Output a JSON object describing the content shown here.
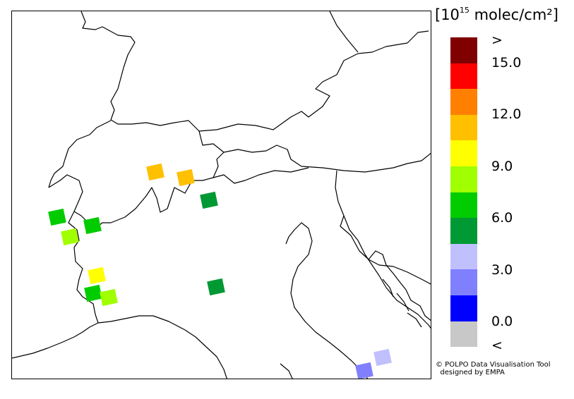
{
  "legend": {
    "unit_prefix": "[10",
    "unit_exponent": "15",
    "unit_suffix": " molec/cm²]",
    "tick_labels": [
      ">",
      "15.0",
      "12.0",
      "9.0",
      "6.0",
      "3.0",
      "0.0",
      "<"
    ],
    "color_scale": [
      "#800000",
      "#ff0000",
      "#ff8000",
      "#ffc000",
      "#ffff00",
      "#a0ff00",
      "#00cc00",
      "#009933",
      "#c0c0ff",
      "#8080ff",
      "#0000ff",
      "#c8c8c8"
    ]
  },
  "credit": {
    "line1": "© POLPO Data Visualisation Tool",
    "line2": "designed by EMPA"
  },
  "map_cells": [
    {
      "id": "cell-1",
      "color": "#ffc000",
      "value": 10.8
    },
    {
      "id": "cell-2",
      "color": "#ffc000",
      "value": 10.8
    },
    {
      "id": "cell-3",
      "color": "#009933",
      "value": 5.4
    },
    {
      "id": "cell-4",
      "color": "#00cc00",
      "value": 6.6
    },
    {
      "id": "cell-5",
      "color": "#00cc00",
      "value": 6.6
    },
    {
      "id": "cell-6",
      "color": "#a0ff00",
      "value": 8.4
    },
    {
      "id": "cell-7",
      "color": "#ffff00",
      "value": 9.6
    },
    {
      "id": "cell-8",
      "color": "#00cc00",
      "value": 6.6
    },
    {
      "id": "cell-9",
      "color": "#a0ff00",
      "value": 8.4
    },
    {
      "id": "cell-10",
      "color": "#009933",
      "value": 5.4
    },
    {
      "id": "cell-11",
      "color": "#c0c0ff",
      "value": 3.6
    },
    {
      "id": "cell-12",
      "color": "#8080ff",
      "value": 2.4
    }
  ]
}
